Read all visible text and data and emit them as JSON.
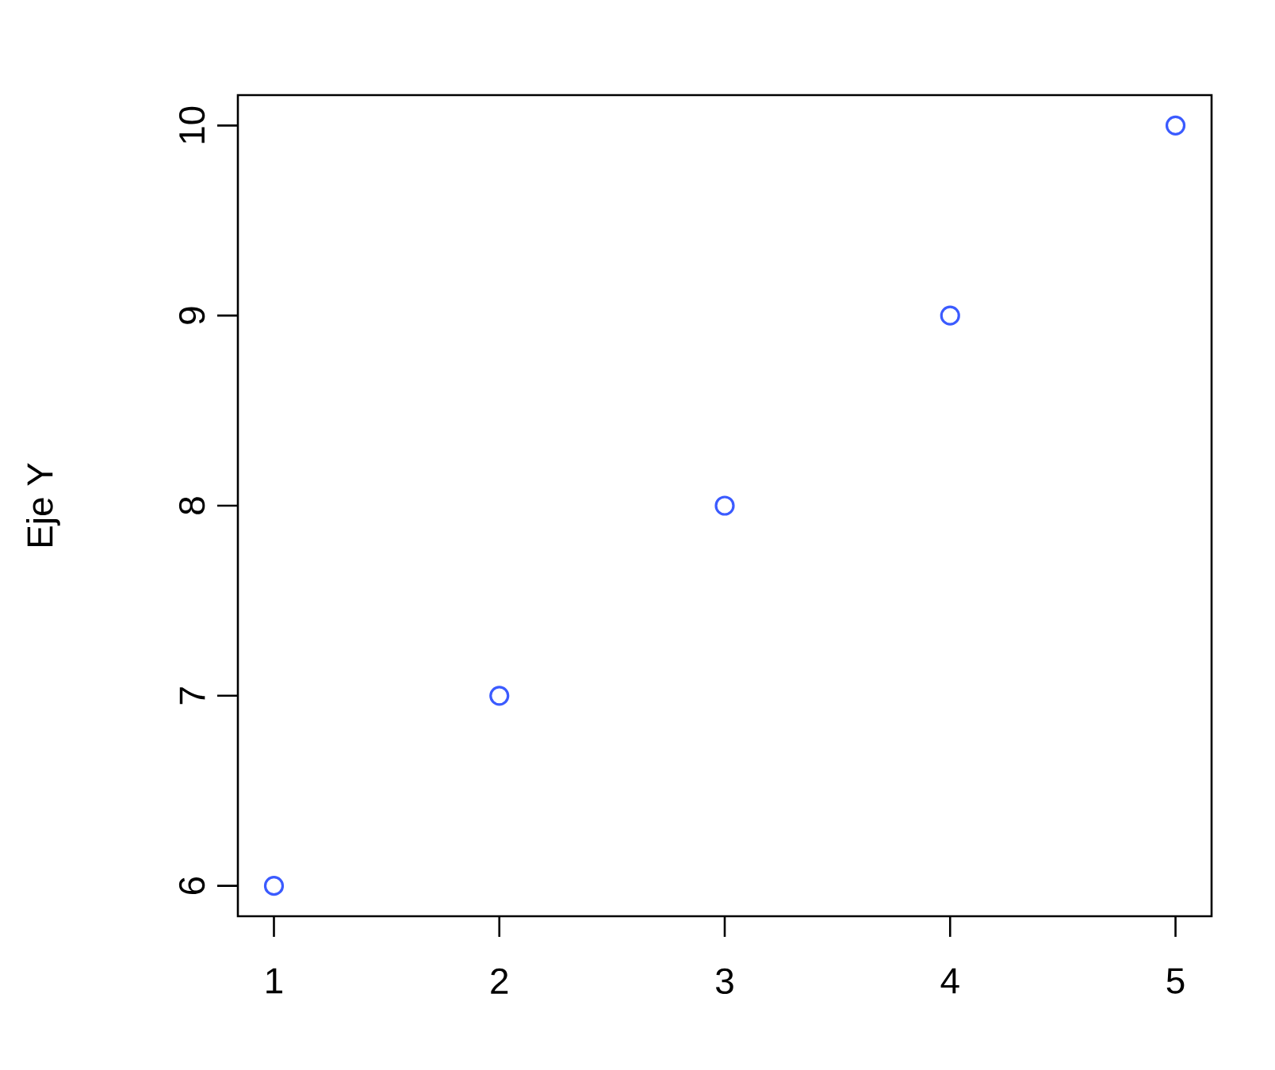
{
  "chart_data": {
    "type": "scatter",
    "ylabel": "Eje Y",
    "x": [
      1,
      2,
      3,
      4,
      5
    ],
    "series": [
      {
        "color": "#3b5bff",
        "values": [
          6,
          7,
          8,
          9,
          10
        ]
      }
    ],
    "xlim": [
      0.84,
      5.16
    ],
    "ylim": [
      5.84,
      10.16
    ],
    "xticks": [
      1,
      2,
      3,
      4,
      5
    ],
    "yticks": [
      6,
      7,
      8,
      9,
      10
    ],
    "marker": "circle"
  }
}
